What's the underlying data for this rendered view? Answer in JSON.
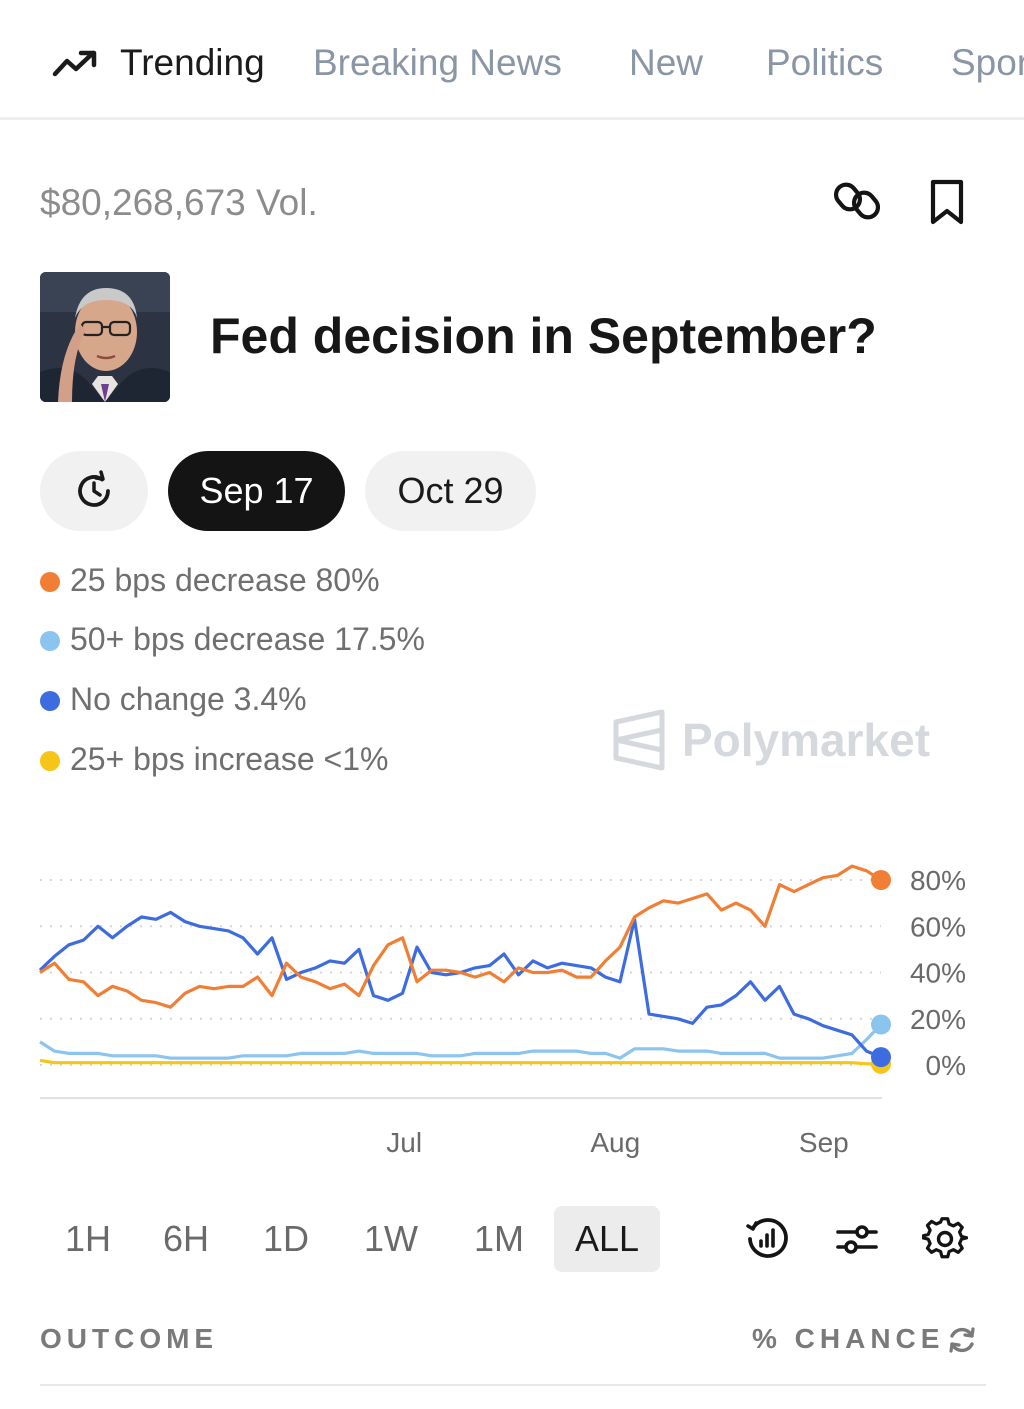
{
  "nav": {
    "tabs": [
      {
        "label": "Trending",
        "icon": "trending-up-icon"
      },
      {
        "label": "Breaking News"
      },
      {
        "label": "New"
      },
      {
        "label": "Politics"
      },
      {
        "label": "Sports"
      }
    ]
  },
  "market": {
    "volume": "$80,268,673 Vol.",
    "title": "Fed decision in September?",
    "date_options": [
      "Sep 17",
      "Oct 29"
    ],
    "selected_date": "Sep 17"
  },
  "legend": [
    {
      "label": "25 bps decrease 80%",
      "color": "#f07f35"
    },
    {
      "label": "50+ bps decrease 17.5%",
      "color": "#8cc4f0"
    },
    {
      "label": "No change 3.4%",
      "color": "#3d6ce0"
    },
    {
      "label": "25+ bps increase <1%",
      "color": "#f5c518"
    }
  ],
  "watermark": "Polymarket",
  "chart_data": {
    "type": "line",
    "x_ticks": [
      "Jul",
      "Aug",
      "Sep"
    ],
    "y_ticks": [
      "80%",
      "60%",
      "40%",
      "20%",
      "0%"
    ],
    "ylim": [
      0,
      100
    ],
    "grid": true,
    "series": [
      {
        "name": "25 bps decrease",
        "color": "#f07f35",
        "values": [
          40,
          44,
          37,
          36,
          30,
          34,
          32,
          28,
          27,
          25,
          31,
          34,
          33,
          34,
          34,
          38,
          30,
          44,
          38,
          36,
          33,
          35,
          30,
          43,
          52,
          55,
          36,
          41,
          41,
          40,
          38,
          40,
          36,
          42,
          40,
          40,
          41,
          38,
          38,
          45,
          51,
          64,
          68,
          71,
          70,
          72,
          74,
          67,
          70,
          67,
          60,
          78,
          75,
          78,
          81,
          82,
          86,
          84,
          80
        ]
      },
      {
        "name": "50+ bps decrease",
        "color": "#8cc4f0",
        "values": [
          10,
          6,
          5,
          5,
          5,
          4,
          4,
          4,
          4,
          3,
          3,
          3,
          3,
          3,
          4,
          4,
          4,
          4,
          5,
          5,
          5,
          5,
          6,
          5,
          5,
          5,
          5,
          4,
          4,
          4,
          5,
          5,
          5,
          5,
          6,
          6,
          6,
          6,
          5,
          5,
          3,
          7,
          7,
          7,
          6,
          6,
          6,
          5,
          5,
          5,
          5,
          3,
          3,
          3,
          3,
          4,
          5,
          11,
          17.5
        ]
      },
      {
        "name": "No change",
        "color": "#3d6ce0",
        "values": [
          41,
          47,
          52,
          54,
          60,
          55,
          60,
          64,
          63,
          66,
          62,
          60,
          59,
          58,
          55,
          48,
          55,
          37,
          40,
          42,
          45,
          44,
          50,
          30,
          28,
          31,
          51,
          40,
          39,
          40,
          42,
          43,
          48,
          39,
          45,
          42,
          44,
          43,
          42,
          38,
          36,
          63,
          22,
          21,
          20,
          18,
          25,
          26,
          30,
          36,
          28,
          34,
          22,
          20,
          17,
          15,
          13,
          6,
          3.4
        ]
      },
      {
        "name": "25+ bps increase",
        "color": "#f5c518",
        "values": [
          2,
          1,
          1,
          1,
          1,
          1,
          1,
          1,
          1,
          1,
          1,
          1,
          1,
          1,
          1,
          1,
          1,
          1,
          1,
          1,
          1,
          1,
          1,
          1,
          1,
          1,
          1,
          1,
          1,
          1,
          1,
          1,
          1,
          1,
          1,
          1,
          1,
          1,
          1,
          1,
          1,
          1,
          1,
          1,
          1,
          1,
          1,
          1,
          1,
          1,
          1,
          1,
          1,
          1,
          1,
          1,
          1,
          0.5,
          0.5
        ]
      }
    ]
  },
  "range_buttons": [
    "1H",
    "6H",
    "1D",
    "1W",
    "1M",
    "ALL"
  ],
  "selected_range": "ALL",
  "table_header": {
    "outcome": "OUTCOME",
    "chance": "% CHANCE"
  }
}
